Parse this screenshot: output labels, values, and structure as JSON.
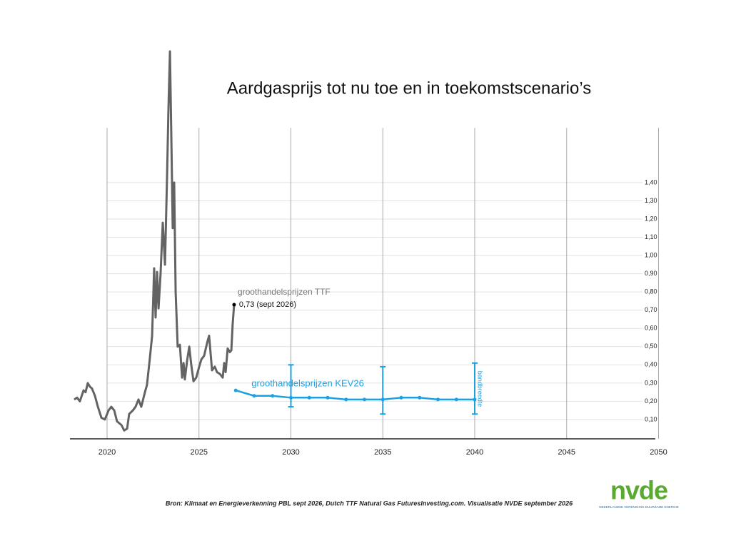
{
  "chart_data": {
    "type": "line",
    "title": "Aardgasprijs tot nu toe en in toekomstscenario’s",
    "xlim": [
      2018,
      2051
    ],
    "xticks": [
      2020,
      2025,
      2030,
      2035,
      2040,
      2045,
      2050
    ],
    "ylim": [
      0,
      1.7
    ],
    "yticks": [
      {
        "value": 0.1,
        "label": "0,10"
      },
      {
        "value": 0.2,
        "label": "0,20"
      },
      {
        "value": 0.3,
        "label": "0,30"
      },
      {
        "value": 0.4,
        "label": "0,40"
      },
      {
        "value": 0.5,
        "label": "0,50"
      },
      {
        "value": 0.6,
        "label": "0,60"
      },
      {
        "value": 0.7,
        "label": "0,70"
      },
      {
        "value": 0.8,
        "label": "0,80"
      },
      {
        "value": 0.9,
        "label": "0,90"
      },
      {
        "value": 1.0,
        "label": "1,00"
      },
      {
        "value": 1.1,
        "label": "1,10"
      },
      {
        "value": 1.2,
        "label": "1,20"
      },
      {
        "value": 1.3,
        "label": "1,30"
      },
      {
        "value": 1.4,
        "label": "1,40"
      }
    ],
    "grid": true,
    "series": [
      {
        "name": "groothandelsprijzen TTF",
        "color": "#636363",
        "x": [
          2018.21,
          2018.37,
          2018.52,
          2018.72,
          2018.83,
          2018.95,
          2019.07,
          2019.18,
          2019.34,
          2019.5,
          2019.69,
          2019.88,
          2020.08,
          2020.23,
          2020.39,
          2020.54,
          2020.78,
          2020.93,
          2021.09,
          2021.2,
          2021.4,
          2021.55,
          2021.71,
          2021.86,
          2022.06,
          2022.17,
          2022.33,
          2022.45,
          2022.56,
          2022.64,
          2022.72,
          2022.8,
          2022.91,
          2023.03,
          2023.15,
          2023.26,
          2023.34,
          2023.42,
          2023.5,
          2023.57,
          2023.65,
          2023.73,
          2023.84,
          2023.96,
          2024.08,
          2024.16,
          2024.23,
          2024.35,
          2024.47,
          2024.58,
          2024.7,
          2024.85,
          2025.01,
          2025.13,
          2025.28,
          2025.44,
          2025.55,
          2025.71,
          2025.86,
          2025.98,
          2026.14,
          2026.29,
          2026.37,
          2026.45,
          2026.56,
          2026.68,
          2026.76,
          2026.83,
          2026.91
        ],
        "values": [
          0.21,
          0.22,
          0.2,
          0.26,
          0.25,
          0.3,
          0.28,
          0.27,
          0.23,
          0.17,
          0.11,
          0.1,
          0.15,
          0.17,
          0.15,
          0.09,
          0.07,
          0.04,
          0.05,
          0.13,
          0.15,
          0.17,
          0.21,
          0.17,
          0.25,
          0.29,
          0.44,
          0.56,
          0.93,
          0.66,
          0.91,
          0.71,
          0.9,
          1.18,
          0.95,
          1.42,
          1.81,
          2.12,
          1.62,
          1.15,
          1.4,
          0.8,
          0.5,
          0.51,
          0.33,
          0.41,
          0.32,
          0.42,
          0.5,
          0.4,
          0.31,
          0.33,
          0.39,
          0.43,
          0.45,
          0.52,
          0.56,
          0.37,
          0.39,
          0.36,
          0.35,
          0.33,
          0.41,
          0.36,
          0.49,
          0.47,
          0.48,
          0.62,
          0.73
        ],
        "endpoint_label": "0,73 (sept 2026)"
      },
      {
        "name": "groothandelsprijzen KEV26",
        "color": "#1ba1e2",
        "x": [
          2027,
          2028,
          2029,
          2030,
          2031,
          2032,
          2033,
          2034,
          2035,
          2036,
          2037,
          2038,
          2039,
          2040
        ],
        "values": [
          0.26,
          0.23,
          0.23,
          0.22,
          0.22,
          0.22,
          0.21,
          0.21,
          0.21,
          0.22,
          0.22,
          0.21,
          0.21,
          0.21
        ],
        "bands": [
          {
            "x": 2030,
            "low": 0.17,
            "high": 0.4
          },
          {
            "x": 2035,
            "low": 0.13,
            "high": 0.39
          },
          {
            "x": 2040,
            "low": 0.13,
            "high": 0.41
          }
        ],
        "band_label": "bandbreedte"
      }
    ],
    "source": "Bron: Klimaat en Energieverkenning PBL sept 2026, Dutch TTF Natural Gas FuturesInvesting.com. Visualisatie NVDE september 2026",
    "logo": {
      "text": "nvde",
      "subtitle": "NEDERLANDSE VERENIGING DUURZAME ENERGIE"
    }
  }
}
